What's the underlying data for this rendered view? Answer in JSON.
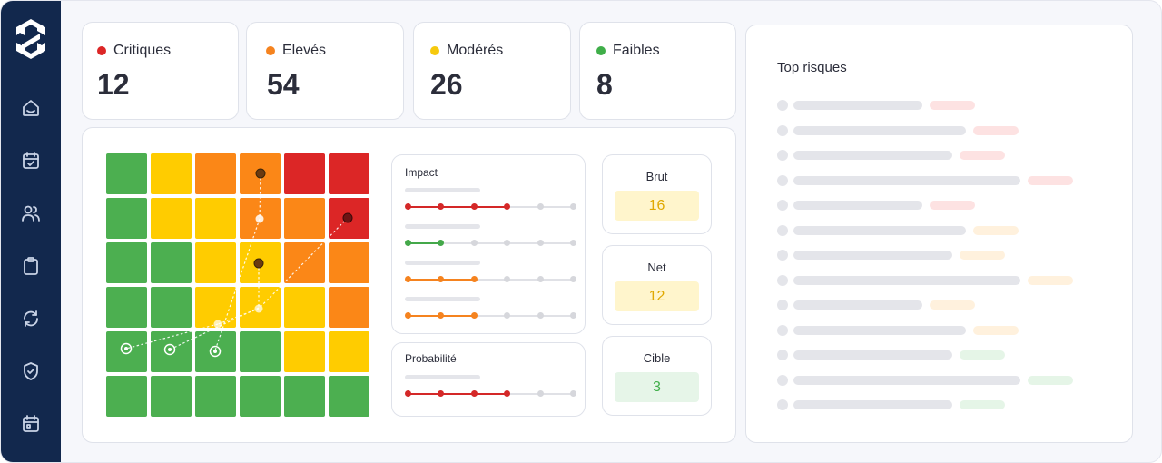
{
  "kpis": [
    {
      "label": "Critiques",
      "value": "12",
      "color": "#dc2626"
    },
    {
      "label": "Elevés",
      "value": "54",
      "color": "#f5831f"
    },
    {
      "label": "Modérés",
      "value": "26",
      "color": "#f6c90e"
    },
    {
      "label": "Faibles",
      "value": "8",
      "color": "#3fae49"
    }
  ],
  "nav_icons": [
    "home-icon",
    "calendar-check-icon",
    "users-icon",
    "clipboard-icon",
    "refresh-icon",
    "shield-icon",
    "calendar-icon"
  ],
  "heatmap": {
    "rows": [
      [
        "green",
        "yellow",
        "orange",
        "orange",
        "red",
        "red"
      ],
      [
        "green",
        "yellow",
        "yellow",
        "orange",
        "orange",
        "red"
      ],
      [
        "green",
        "green",
        "yellow",
        "yellow",
        "orange",
        "orange"
      ],
      [
        "green",
        "green",
        "yellow",
        "yellow",
        "yellow",
        "orange"
      ],
      [
        "green",
        "green",
        "green",
        "green",
        "yellow",
        "yellow"
      ],
      [
        "green",
        "green",
        "green",
        "green",
        "green",
        "green"
      ]
    ],
    "colors": {
      "green": "#4caf50",
      "yellow": "#ffcc00",
      "orange": "#fb8717",
      "red": "#dc2626"
    }
  },
  "impact": {
    "title": "Impact",
    "sliders": [
      {
        "filled": 4,
        "color": "#d42828"
      },
      {
        "filled": 2,
        "color": "#44a84a"
      },
      {
        "filled": 3,
        "color": "#f5831f"
      },
      {
        "filled": 3,
        "color": "#f5831f"
      }
    ]
  },
  "probabilite": {
    "title": "Probabilité",
    "sliders": [
      {
        "filled": 4,
        "color": "#d42828"
      }
    ]
  },
  "scores": [
    {
      "label": "Brut",
      "value": "16",
      "bg": "#fff5cc",
      "fg": "#e0a800"
    },
    {
      "label": "Net",
      "value": "12",
      "bg": "#fff5cc",
      "fg": "#e0a800"
    },
    {
      "label": "Cible",
      "value": "3",
      "bg": "#e6f5e8",
      "fg": "#3fae49"
    }
  ],
  "top_risques": {
    "title": "Top risques",
    "rows": [
      {
        "bar": 142,
        "badge": 50,
        "badge_color": "#fde2e2"
      },
      {
        "bar": 190,
        "badge": 50,
        "badge_color": "#fde2e2"
      },
      {
        "bar": 175,
        "badge": 50,
        "badge_color": "#fde2e2"
      },
      {
        "bar": 250,
        "badge": 50,
        "badge_color": "#fde2e2"
      },
      {
        "bar": 142,
        "badge": 50,
        "badge_color": "#fde2e2"
      },
      {
        "bar": 190,
        "badge": 50,
        "badge_color": "#fff1dd"
      },
      {
        "bar": 175,
        "badge": 50,
        "badge_color": "#fff1dd"
      },
      {
        "bar": 250,
        "badge": 50,
        "badge_color": "#fff1dd"
      },
      {
        "bar": 142,
        "badge": 50,
        "badge_color": "#fff1dd"
      },
      {
        "bar": 190,
        "badge": 50,
        "badge_color": "#fff1dd"
      },
      {
        "bar": 175,
        "badge": 50,
        "badge_color": "#e5f5e7"
      },
      {
        "bar": 250,
        "badge": 50,
        "badge_color": "#e5f5e7"
      },
      {
        "bar": 175,
        "badge": 50,
        "badge_color": "#e5f5e7"
      }
    ]
  }
}
